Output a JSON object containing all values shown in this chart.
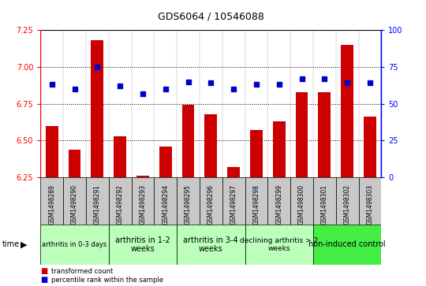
{
  "title": "GDS6064 / 10546088",
  "samples": [
    "GSM1498289",
    "GSM1498290",
    "GSM1498291",
    "GSM1498292",
    "GSM1498293",
    "GSM1498294",
    "GSM1498295",
    "GSM1498296",
    "GSM1498297",
    "GSM1498298",
    "GSM1498299",
    "GSM1498300",
    "GSM1498301",
    "GSM1498302",
    "GSM1498303"
  ],
  "bar_values": [
    6.6,
    6.44,
    7.18,
    6.53,
    6.26,
    6.46,
    6.74,
    6.68,
    6.32,
    6.57,
    6.63,
    6.83,
    6.83,
    7.15,
    6.66
  ],
  "dot_values": [
    63,
    60,
    75,
    62,
    57,
    60,
    65,
    64,
    60,
    63,
    63,
    67,
    67,
    64,
    64
  ],
  "ylim_left": [
    6.25,
    7.25
  ],
  "ylim_right": [
    0,
    100
  ],
  "yticks_left": [
    6.25,
    6.5,
    6.75,
    7.0,
    7.25
  ],
  "yticks_right": [
    0,
    25,
    50,
    75,
    100
  ],
  "bar_color": "#cc0000",
  "dot_color": "#0000cc",
  "bar_bottom": 6.25,
  "groups": [
    {
      "label": "arthritis in 0-3 days",
      "start": 0,
      "end": 3,
      "color": "#bbffbb",
      "fontsize": 6.0
    },
    {
      "label": "arthritis in 1-2\nweeks",
      "start": 3,
      "end": 6,
      "color": "#bbffbb",
      "fontsize": 7.0
    },
    {
      "label": "arthritis in 3-4\nweeks",
      "start": 6,
      "end": 9,
      "color": "#bbffbb",
      "fontsize": 7.0
    },
    {
      "label": "declining arthritis > 2\nweeks",
      "start": 9,
      "end": 12,
      "color": "#bbffbb",
      "fontsize": 6.5
    },
    {
      "label": "non-induced control",
      "start": 12,
      "end": 15,
      "color": "#44ee44",
      "fontsize": 7.0
    }
  ],
  "plot_bg": "#ffffff",
  "tick_box_color": "#c8c8c8",
  "grid_color": "#000000",
  "title_fontsize": 9,
  "ytick_fontsize": 7,
  "xtick_fontsize": 5.5
}
